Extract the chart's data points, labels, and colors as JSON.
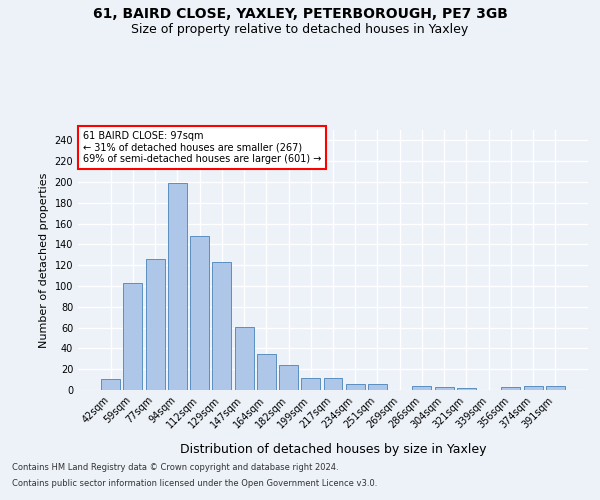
{
  "title1": "61, BAIRD CLOSE, YAXLEY, PETERBOROUGH, PE7 3GB",
  "title2": "Size of property relative to detached houses in Yaxley",
  "xlabel": "Distribution of detached houses by size in Yaxley",
  "ylabel": "Number of detached properties",
  "categories": [
    "42sqm",
    "59sqm",
    "77sqm",
    "94sqm",
    "112sqm",
    "129sqm",
    "147sqm",
    "164sqm",
    "182sqm",
    "199sqm",
    "217sqm",
    "234sqm",
    "251sqm",
    "269sqm",
    "286sqm",
    "304sqm",
    "321sqm",
    "339sqm",
    "356sqm",
    "374sqm",
    "391sqm"
  ],
  "values": [
    11,
    103,
    126,
    199,
    148,
    123,
    61,
    35,
    24,
    12,
    12,
    6,
    6,
    0,
    4,
    3,
    2,
    0,
    3,
    4,
    4
  ],
  "bar_color": "#aec6e8",
  "bar_edge_color": "#5a8fc0",
  "annotation_text": "61 BAIRD CLOSE: 97sqm\n← 31% of detached houses are smaller (267)\n69% of semi-detached houses are larger (601) →",
  "ylim": [
    0,
    250
  ],
  "yticks": [
    0,
    20,
    40,
    60,
    80,
    100,
    120,
    140,
    160,
    180,
    200,
    220,
    240
  ],
  "background_color": "#edf2f9",
  "plot_bg_color": "#edf2f9",
  "grid_color": "#ffffff",
  "footer_line1": "Contains HM Land Registry data © Crown copyright and database right 2024.",
  "footer_line2": "Contains public sector information licensed under the Open Government Licence v3.0.",
  "title1_fontsize": 10,
  "title2_fontsize": 9,
  "xlabel_fontsize": 9,
  "ylabel_fontsize": 8,
  "tick_fontsize": 7,
  "annotation_fontsize": 7,
  "footer_fontsize": 6
}
